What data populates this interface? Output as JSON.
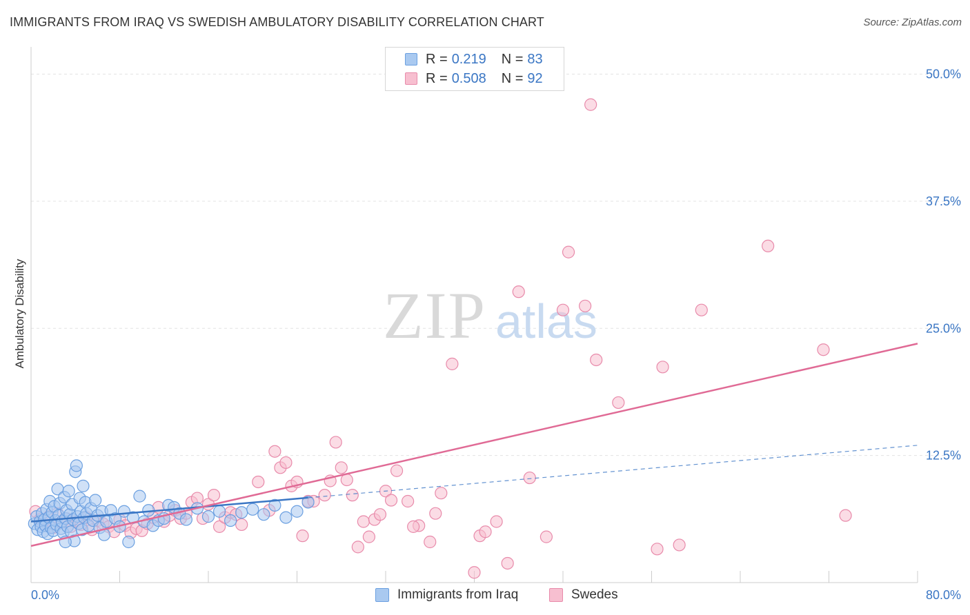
{
  "title": "IMMIGRANTS FROM IRAQ VS SWEDISH AMBULATORY DISABILITY CORRELATION CHART",
  "source": "Source: ZipAtlas.com",
  "watermark": {
    "zip": "ZIP",
    "atlas": "atlas"
  },
  "legend": {
    "rows": [
      {
        "r_label": "R =",
        "r_value": "0.219",
        "n_label": "N =",
        "n_value": "83",
        "color": "#a9c9f0",
        "border": "#6a9fe0"
      },
      {
        "r_label": "R =",
        "r_value": "0.508",
        "n_label": "N =",
        "n_value": "92",
        "color": "#f7bfd0",
        "border": "#e88aaa"
      }
    ]
  },
  "chart_data": {
    "type": "scatter",
    "title": "IMMIGRANTS FROM IRAQ VS SWEDISH AMBULATORY DISABILITY CORRELATION CHART",
    "xlabel": "",
    "ylabel": "Ambulatory Disability",
    "xlim": [
      0,
      80
    ],
    "ylim": [
      0,
      52
    ],
    "x_tick_labels": [
      {
        "value": 0,
        "label": "0.0%"
      },
      {
        "value": 80,
        "label": "80.0%"
      }
    ],
    "y_tick_labels": [
      {
        "value": 12.5,
        "label": "12.5%"
      },
      {
        "value": 25,
        "label": "25.0%"
      },
      {
        "value": 37.5,
        "label": "37.5%"
      },
      {
        "value": 50,
        "label": "50.0%"
      }
    ],
    "x_minor_ticks": [
      8,
      16,
      24,
      32,
      40,
      48,
      56,
      64,
      72,
      80
    ],
    "series": [
      {
        "name": "Immigrants from Iraq",
        "color": "#a9c9f0",
        "edge": "#6a9fe0",
        "line_color": "#3a76c4",
        "trend": {
          "x0": 0,
          "y0": 6.0,
          "x_solid_end": 25,
          "x1": 80,
          "y1": 13.5
        },
        "points": [
          [
            0.3,
            5.8
          ],
          [
            0.5,
            6.5
          ],
          [
            0.6,
            5.2
          ],
          [
            0.8,
            6.0
          ],
          [
            0.9,
            5.5
          ],
          [
            1.0,
            6.8
          ],
          [
            1.1,
            5.0
          ],
          [
            1.2,
            6.2
          ],
          [
            1.3,
            5.6
          ],
          [
            1.4,
            7.2
          ],
          [
            1.5,
            4.8
          ],
          [
            1.6,
            6.4
          ],
          [
            1.7,
            8.0
          ],
          [
            1.8,
            5.4
          ],
          [
            1.9,
            6.9
          ],
          [
            2.0,
            5.1
          ],
          [
            2.1,
            7.5
          ],
          [
            2.2,
            6.1
          ],
          [
            2.3,
            5.7
          ],
          [
            2.4,
            9.2
          ],
          [
            2.5,
            6.6
          ],
          [
            2.6,
            7.8
          ],
          [
            2.7,
            5.3
          ],
          [
            2.8,
            6.0
          ],
          [
            2.9,
            4.9
          ],
          [
            3.0,
            8.4
          ],
          [
            3.1,
            6.3
          ],
          [
            3.2,
            7.1
          ],
          [
            3.3,
            5.5
          ],
          [
            3.4,
            9.0
          ],
          [
            3.5,
            6.7
          ],
          [
            3.6,
            5.0
          ],
          [
            3.7,
            7.7
          ],
          [
            3.8,
            6.2
          ],
          [
            3.9,
            4.1
          ],
          [
            4.0,
            10.9
          ],
          [
            4.1,
            11.5
          ],
          [
            4.2,
            6.5
          ],
          [
            4.3,
            5.8
          ],
          [
            4.4,
            8.3
          ],
          [
            4.5,
            7.0
          ],
          [
            4.6,
            5.2
          ],
          [
            4.7,
            9.5
          ],
          [
            4.8,
            6.4
          ],
          [
            4.9,
            7.9
          ],
          [
            5.0,
            6.8
          ],
          [
            5.2,
            5.6
          ],
          [
            5.4,
            7.3
          ],
          [
            5.6,
            6.1
          ],
          [
            5.8,
            8.1
          ],
          [
            6.0,
            6.6
          ],
          [
            6.2,
            5.4
          ],
          [
            6.4,
            7.0
          ],
          [
            6.6,
            4.7
          ],
          [
            6.8,
            6.0
          ],
          [
            7.2,
            7.1
          ],
          [
            7.6,
            6.3
          ],
          [
            8.0,
            5.5
          ],
          [
            8.4,
            7.0
          ],
          [
            8.8,
            4.0
          ],
          [
            9.2,
            6.4
          ],
          [
            9.8,
            8.5
          ],
          [
            10.2,
            6.0
          ],
          [
            10.6,
            7.1
          ],
          [
            11.0,
            5.6
          ],
          [
            11.5,
            6.1
          ],
          [
            12.0,
            6.3
          ],
          [
            12.4,
            7.6
          ],
          [
            12.9,
            7.4
          ],
          [
            13.4,
            6.8
          ],
          [
            14.0,
            6.2
          ],
          [
            15.0,
            7.3
          ],
          [
            16.0,
            6.5
          ],
          [
            17.0,
            7.0
          ],
          [
            18.0,
            6.1
          ],
          [
            19.0,
            6.9
          ],
          [
            20.0,
            7.2
          ],
          [
            21.0,
            6.7
          ],
          [
            22.0,
            7.6
          ],
          [
            23.0,
            6.4
          ],
          [
            24.0,
            7.0
          ],
          [
            25.0,
            7.9
          ],
          [
            3.1,
            4.0
          ]
        ]
      },
      {
        "name": "Swedes",
        "color": "#f7bfd0",
        "edge": "#e88aaa",
        "line_color": "#e06a95",
        "trend": {
          "x0": 0,
          "y0": 3.6,
          "x1": 80,
          "y1": 23.5
        },
        "points": [
          [
            0.4,
            7.0
          ],
          [
            0.8,
            6.2
          ],
          [
            1.2,
            5.8
          ],
          [
            1.6,
            6.5
          ],
          [
            2.0,
            5.4
          ],
          [
            2.4,
            6.8
          ],
          [
            2.8,
            5.9
          ],
          [
            3.2,
            6.3
          ],
          [
            3.6,
            5.5
          ],
          [
            4.0,
            6.0
          ],
          [
            4.5,
            5.7
          ],
          [
            5.0,
            6.4
          ],
          [
            5.5,
            5.2
          ],
          [
            6.0,
            6.1
          ],
          [
            6.5,
            5.8
          ],
          [
            7.0,
            5.5
          ],
          [
            7.5,
            5.0
          ],
          [
            8.0,
            6.2
          ],
          [
            8.5,
            5.6
          ],
          [
            9.0,
            4.9
          ],
          [
            9.5,
            5.3
          ],
          [
            10.0,
            5.1
          ],
          [
            10.5,
            5.8
          ],
          [
            11.0,
            6.4
          ],
          [
            11.5,
            7.4
          ],
          [
            12.0,
            6.0
          ],
          [
            12.5,
            6.6
          ],
          [
            13.0,
            7.1
          ],
          [
            13.5,
            6.3
          ],
          [
            14.0,
            6.8
          ],
          [
            14.5,
            7.9
          ],
          [
            15.0,
            8.3
          ],
          [
            15.5,
            6.3
          ],
          [
            16.0,
            7.7
          ],
          [
            16.5,
            8.6
          ],
          [
            17.0,
            5.5
          ],
          [
            17.5,
            6.4
          ],
          [
            18.0,
            6.9
          ],
          [
            18.5,
            6.7
          ],
          [
            19.0,
            5.7
          ],
          [
            20.5,
            9.9
          ],
          [
            21.5,
            7.1
          ],
          [
            22.0,
            12.9
          ],
          [
            22.5,
            11.3
          ],
          [
            23.0,
            11.8
          ],
          [
            23.5,
            9.5
          ],
          [
            24.0,
            9.9
          ],
          [
            24.5,
            4.6
          ],
          [
            25.0,
            8.0
          ],
          [
            25.5,
            8.0
          ],
          [
            26.5,
            8.6
          ],
          [
            27.0,
            10.0
          ],
          [
            27.5,
            13.8
          ],
          [
            28.0,
            11.3
          ],
          [
            28.5,
            10.1
          ],
          [
            29.0,
            8.6
          ],
          [
            29.5,
            3.5
          ],
          [
            30.0,
            6.0
          ],
          [
            30.5,
            4.5
          ],
          [
            31.0,
            6.2
          ],
          [
            31.5,
            6.7
          ],
          [
            32.0,
            9.0
          ],
          [
            32.5,
            8.1
          ],
          [
            33.0,
            11.0
          ],
          [
            34.0,
            8.0
          ],
          [
            35.0,
            5.6
          ],
          [
            36.0,
            4.0
          ],
          [
            37.0,
            8.8
          ],
          [
            38.0,
            21.5
          ],
          [
            40.0,
            1.0
          ],
          [
            40.5,
            4.6
          ],
          [
            41.0,
            5.0
          ],
          [
            42.0,
            6.0
          ],
          [
            43.0,
            1.9
          ],
          [
            45.0,
            10.3
          ],
          [
            46.5,
            4.5
          ],
          [
            48.0,
            26.8
          ],
          [
            48.5,
            32.5
          ],
          [
            50.0,
            27.2
          ],
          [
            50.5,
            47.0
          ],
          [
            51.0,
            21.9
          ],
          [
            53.0,
            17.7
          ],
          [
            56.5,
            3.3
          ],
          [
            57.0,
            21.2
          ],
          [
            58.5,
            3.7
          ],
          [
            60.5,
            26.8
          ],
          [
            66.5,
            33.1
          ],
          [
            71.5,
            22.9
          ],
          [
            73.5,
            6.6
          ],
          [
            44.0,
            28.6
          ],
          [
            36.5,
            6.8
          ],
          [
            34.5,
            5.5
          ]
        ]
      }
    ]
  },
  "bottom_legend": [
    {
      "label": "Immigrants from Iraq",
      "color": "#a9c9f0",
      "border": "#6a9fe0"
    },
    {
      "label": "Swedes",
      "color": "#f7bfd0",
      "border": "#e88aaa"
    }
  ]
}
